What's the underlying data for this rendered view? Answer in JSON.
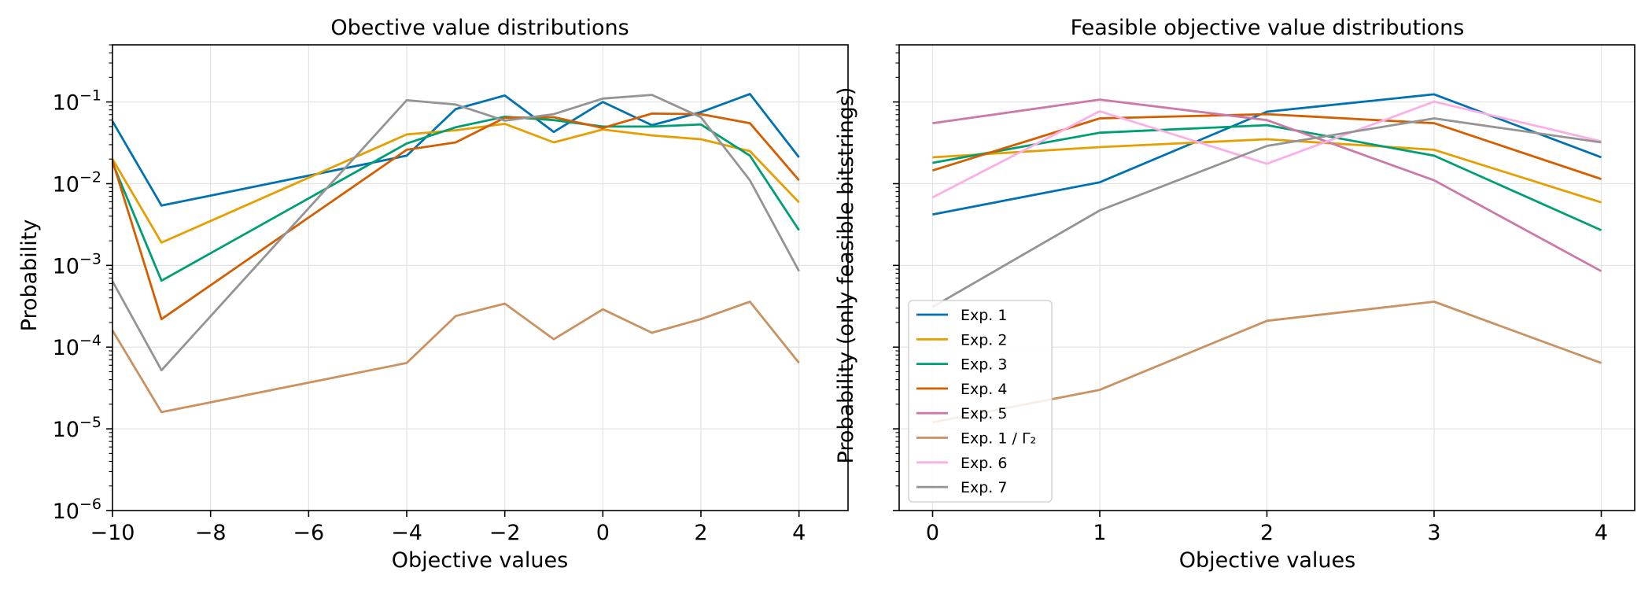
{
  "figure": {
    "background": "#ffffff",
    "legend": {
      "placement": "lower-left",
      "entries": [
        {
          "label": "Exp. 1",
          "color": "#0072b2"
        },
        {
          "label": "Exp. 2",
          "color": "#e69f00"
        },
        {
          "label": "Exp. 3",
          "color": "#009e73"
        },
        {
          "label": "Exp. 4",
          "color": "#d55e00"
        },
        {
          "label": "Exp. 5",
          "color": "#cc79a7"
        },
        {
          "label": "Exp. 1 / Γ₂",
          "color": "#ca9161"
        },
        {
          "label": "Exp. 6",
          "color": "#fbafe4"
        },
        {
          "label": "Exp. 7",
          "color": "#949494"
        }
      ]
    }
  },
  "chart_data": [
    {
      "type": "line",
      "title": "Obective value distributions",
      "xlabel": "Objective values",
      "ylabel": "Probability",
      "yscale": "log",
      "xlim": [
        -10,
        5
      ],
      "ylim": [
        1e-06,
        0.5
      ],
      "xticks": [
        -10,
        -8,
        -6,
        -4,
        -2,
        0,
        2,
        4
      ],
      "xtick_labels": [
        "−10",
        "−8",
        "−6",
        "−4",
        "−2",
        "0",
        "2",
        "4"
      ],
      "yticks": [
        1e-06,
        1e-05,
        0.0001,
        0.001,
        0.01,
        0.1
      ],
      "ytick_labels": [
        [
          "10",
          "−6"
        ],
        [
          "10",
          "−5"
        ],
        [
          "10",
          "−4"
        ],
        [
          "10",
          "−3"
        ],
        [
          "10",
          "−2"
        ],
        [
          "10",
          "−1"
        ]
      ],
      "grid": true,
      "series": [
        {
          "name": "Exp. 1",
          "color": "#0072b2",
          "x": [
            -10,
            -9,
            -4,
            -3,
            -2,
            -1,
            0,
            1,
            2,
            3,
            4
          ],
          "y": [
            0.058,
            0.0054,
            0.022,
            0.082,
            0.12,
            0.043,
            0.1,
            0.052,
            0.075,
            0.125,
            0.021
          ]
        },
        {
          "name": "Exp. 2",
          "color": "#e69f00",
          "x": [
            -10,
            -9,
            -4,
            -3,
            -2,
            -1,
            0,
            1,
            2,
            3,
            4
          ],
          "y": [
            0.02,
            0.0019,
            0.04,
            0.045,
            0.054,
            0.032,
            0.046,
            0.039,
            0.035,
            0.025,
            0.0059
          ]
        },
        {
          "name": "Exp. 3",
          "color": "#009e73",
          "x": [
            -10,
            -9,
            -4,
            -3,
            -2,
            -1,
            0,
            1,
            2,
            3,
            4
          ],
          "y": [
            0.018,
            0.00065,
            0.031,
            0.049,
            0.066,
            0.06,
            0.05,
            0.05,
            0.053,
            0.022,
            0.0027
          ]
        },
        {
          "name": "Exp. 4",
          "color": "#d55e00",
          "x": [
            -10,
            -9,
            -4,
            -3,
            -2,
            -1,
            0,
            1,
            2,
            3,
            4
          ],
          "y": [
            0.019,
            0.00022,
            0.026,
            0.032,
            0.064,
            0.065,
            0.048,
            0.072,
            0.071,
            0.055,
            0.011
          ]
        },
        {
          "name": "Exp. 1 / Γ₂",
          "color": "#ca9161",
          "x": [
            -10,
            -9,
            -4,
            -3,
            -2,
            -1,
            0,
            1,
            2,
            3,
            4
          ],
          "y": [
            0.00016,
            1.6e-05,
            6.4e-05,
            0.00024,
            0.00034,
            0.000125,
            0.00029,
            0.00015,
            0.00022,
            0.00036,
            6.4e-05
          ]
        },
        {
          "name": "Exp. 7",
          "color": "#949494",
          "x": [
            -10,
            -9,
            -4,
            -3,
            -2,
            -1,
            0,
            1,
            2,
            3,
            4
          ],
          "y": [
            0.00064,
            5.2e-05,
            0.105,
            0.093,
            0.059,
            0.071,
            0.11,
            0.122,
            0.065,
            0.011,
            0.00085
          ]
        }
      ]
    },
    {
      "type": "line",
      "title": "Feasible objective value distributions",
      "xlabel": "Objective values",
      "ylabel": "Probability (only feasible bitstrings)",
      "yscale": "log",
      "xlim": [
        -0.2,
        4.2
      ],
      "ylim": [
        1e-06,
        0.5
      ],
      "xticks": [
        0,
        1,
        2,
        3,
        4
      ],
      "xtick_labels": [
        "0",
        "1",
        "2",
        "3",
        "4"
      ],
      "grid": true,
      "series": [
        {
          "name": "Exp. 1",
          "color": "#0072b2",
          "x": [
            0,
            1,
            2,
            3,
            4
          ],
          "y": [
            0.0042,
            0.0104,
            0.076,
            0.124,
            0.021
          ]
        },
        {
          "name": "Exp. 2",
          "color": "#e69f00",
          "x": [
            0,
            1,
            2,
            3,
            4
          ],
          "y": [
            0.021,
            0.028,
            0.035,
            0.026,
            0.0059
          ]
        },
        {
          "name": "Exp. 3",
          "color": "#009e73",
          "x": [
            0,
            1,
            2,
            3,
            4
          ],
          "y": [
            0.018,
            0.042,
            0.052,
            0.022,
            0.0027
          ]
        },
        {
          "name": "Exp. 4",
          "color": "#d55e00",
          "x": [
            0,
            1,
            2,
            3,
            4
          ],
          "y": [
            0.0145,
            0.063,
            0.071,
            0.055,
            0.0114
          ]
        },
        {
          "name": "Exp. 5",
          "color": "#cc79a7",
          "x": [
            0,
            1,
            2,
            3,
            4
          ],
          "y": [
            0.055,
            0.107,
            0.06,
            0.011,
            0.00085
          ]
        },
        {
          "name": "Exp. 1 / Γ₂",
          "color": "#ca9161",
          "x": [
            0,
            1,
            2,
            3,
            4
          ],
          "y": [
            1.2e-05,
            3e-05,
            0.00021,
            0.00036,
            6.4e-05
          ]
        },
        {
          "name": "Exp. 6",
          "color": "#fbafe4",
          "x": [
            0,
            1,
            2,
            3,
            4
          ],
          "y": [
            0.0068,
            0.077,
            0.0175,
            0.101,
            0.033
          ]
        },
        {
          "name": "Exp. 7",
          "color": "#949494",
          "x": [
            0,
            1,
            2,
            3,
            4
          ],
          "y": [
            0.00031,
            0.0047,
            0.029,
            0.063,
            0.032
          ]
        }
      ]
    }
  ]
}
